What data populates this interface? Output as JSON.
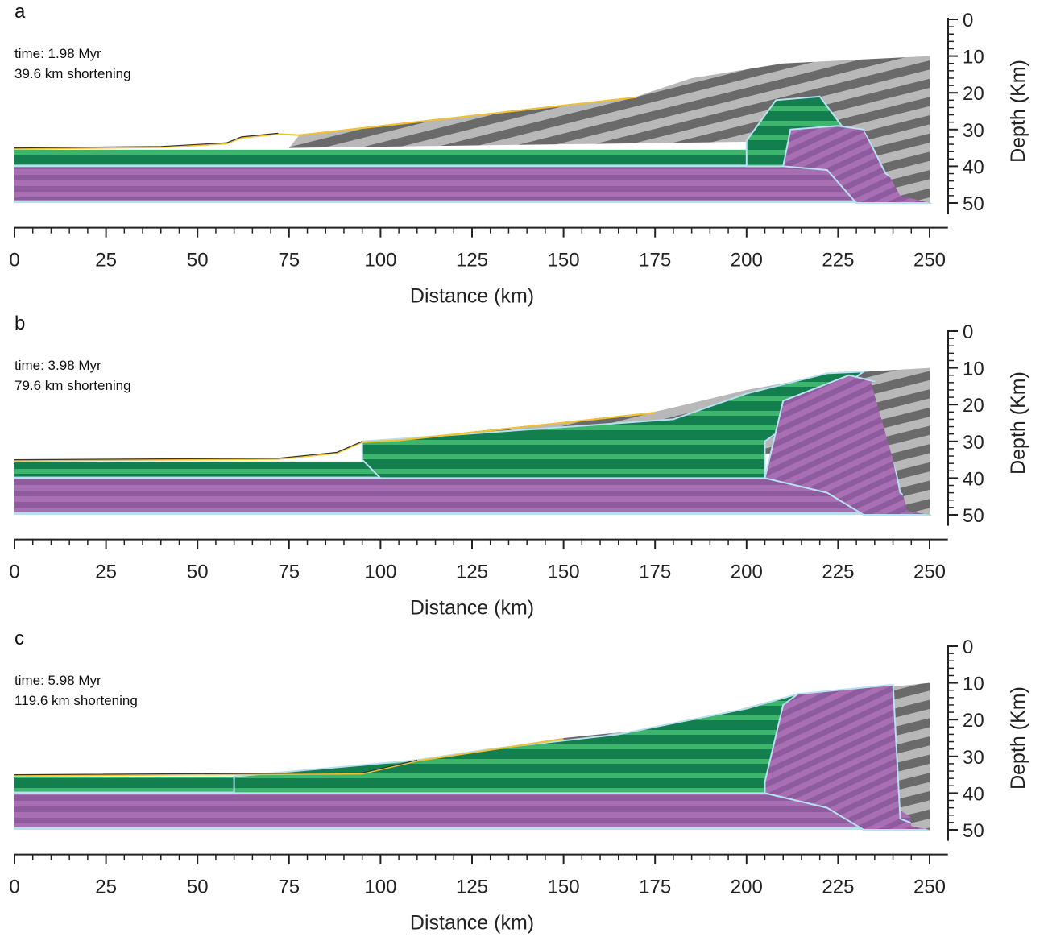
{
  "chart_data": [
    {
      "type": "cross-section",
      "panel_label": "a",
      "annotations": [
        "time: 1.98 Myr",
        "39.6 km shortening"
      ],
      "xlabel": "Distance (km)",
      "ylabel": "Depth (Km)",
      "xlim": [
        0,
        255
      ],
      "ylim": [
        0,
        53
      ],
      "y_inverted": true,
      "xticks": [
        0,
        25,
        50,
        75,
        100,
        125,
        150,
        175,
        200,
        225,
        250
      ],
      "yticks": [
        0,
        10,
        20,
        30,
        40,
        50
      ]
    },
    {
      "type": "cross-section",
      "panel_label": "b",
      "annotations": [
        "time: 3.98 Myr",
        "79.6 km shortening"
      ],
      "xlabel": "Distance (km)",
      "ylabel": "Depth (Km)",
      "xlim": [
        0,
        255
      ],
      "ylim": [
        0,
        53
      ],
      "y_inverted": true,
      "xticks": [
        0,
        25,
        50,
        75,
        100,
        125,
        150,
        175,
        200,
        225,
        250
      ],
      "yticks": [
        0,
        10,
        20,
        30,
        40,
        50
      ]
    },
    {
      "type": "cross-section",
      "panel_label": "c",
      "annotations": [
        "time: 5.98 Myr",
        "119.6 km shortening"
      ],
      "xlabel": "Distance (km)",
      "ylabel": "Depth (Km)",
      "xlim": [
        0,
        255
      ],
      "ylim": [
        0,
        53
      ],
      "y_inverted": true,
      "xticks": [
        0,
        25,
        50,
        75,
        100,
        125,
        150,
        175,
        200,
        225,
        250
      ],
      "yticks": [
        0,
        10,
        20,
        30,
        40,
        50
      ]
    }
  ]
}
